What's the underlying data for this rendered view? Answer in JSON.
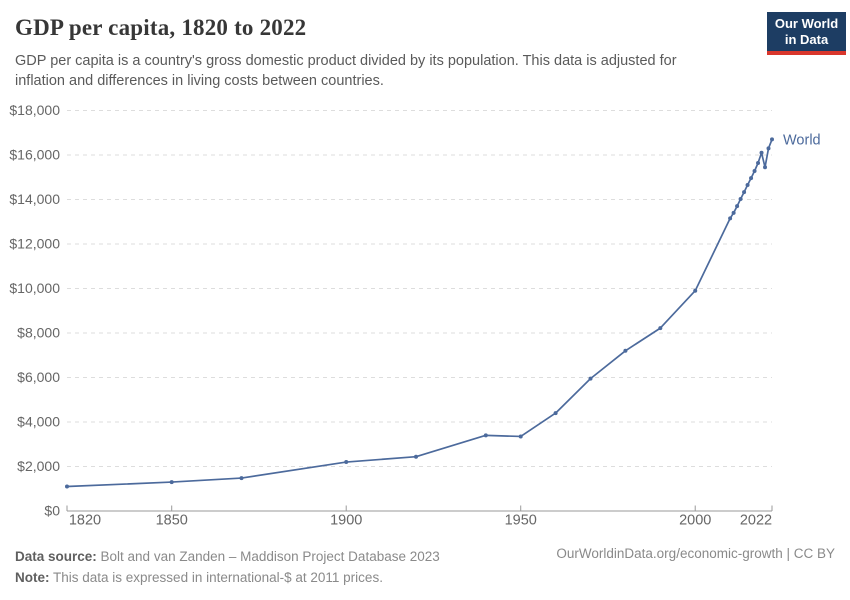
{
  "header": {
    "title": "GDP per capita, 1820 to 2022",
    "subtitle": "GDP per capita is a country's gross domestic product divided by its population. This data is adjusted for inflation and differences in living costs between countries.",
    "logo": {
      "line1": "Our World",
      "line2": "in Data",
      "bg_color": "#1d3d63",
      "accent_color": "#d9362c"
    }
  },
  "chart_data": {
    "type": "line",
    "title": "GDP per capita, 1820 to 2022",
    "xlabel": "",
    "ylabel": "",
    "grid": "horizontal-dashed",
    "legend_position": "end-of-line-label",
    "x": {
      "range": [
        1820,
        2022
      ],
      "ticks": [
        1820,
        1850,
        1900,
        1950,
        2000,
        2022
      ],
      "tick_labels": [
        "1820",
        "1850",
        "1900",
        "1950",
        "2000",
        "2022"
      ]
    },
    "y": {
      "range": [
        0,
        18000
      ],
      "ticks": [
        0,
        2000,
        4000,
        6000,
        8000,
        10000,
        12000,
        14000,
        16000,
        18000
      ],
      "tick_labels": [
        "$0",
        "$2,000",
        "$4,000",
        "$6,000",
        "$8,000",
        "$10,000",
        "$12,000",
        "$14,000",
        "$16,000",
        "$18,000"
      ]
    },
    "series": [
      {
        "name": "World",
        "color": "#4c6a9c",
        "points": [
          [
            1820,
            1100
          ],
          [
            1850,
            1300
          ],
          [
            1870,
            1480
          ],
          [
            1900,
            2200
          ],
          [
            1920,
            2440
          ],
          [
            1940,
            3400
          ],
          [
            1950,
            3350
          ],
          [
            1960,
            4400
          ],
          [
            1970,
            5950
          ],
          [
            1980,
            7200
          ],
          [
            1990,
            8220
          ],
          [
            2000,
            9900
          ],
          [
            2010,
            13150
          ],
          [
            2011,
            13400
          ],
          [
            2012,
            13700
          ],
          [
            2013,
            14020
          ],
          [
            2014,
            14330
          ],
          [
            2015,
            14650
          ],
          [
            2016,
            14960
          ],
          [
            2017,
            15280
          ],
          [
            2018,
            15640
          ],
          [
            2019,
            16100
          ],
          [
            2020,
            15450
          ],
          [
            2021,
            16300
          ],
          [
            2022,
            16700
          ]
        ]
      }
    ],
    "colors": {
      "line": "#4c6a9c",
      "gridline": "#dddddd",
      "axis": "#9a9a9a",
      "tick_text": "#666666"
    }
  },
  "footer": {
    "source_label": "Data source:",
    "source_text": " Bolt and van Zanden – Maddison Project Database 2023",
    "note_label": "Note:",
    "note_text": " This data is expressed in international-$ at 2011 prices.",
    "right_text": "OurWorldinData.org/economic-growth | CC BY"
  }
}
